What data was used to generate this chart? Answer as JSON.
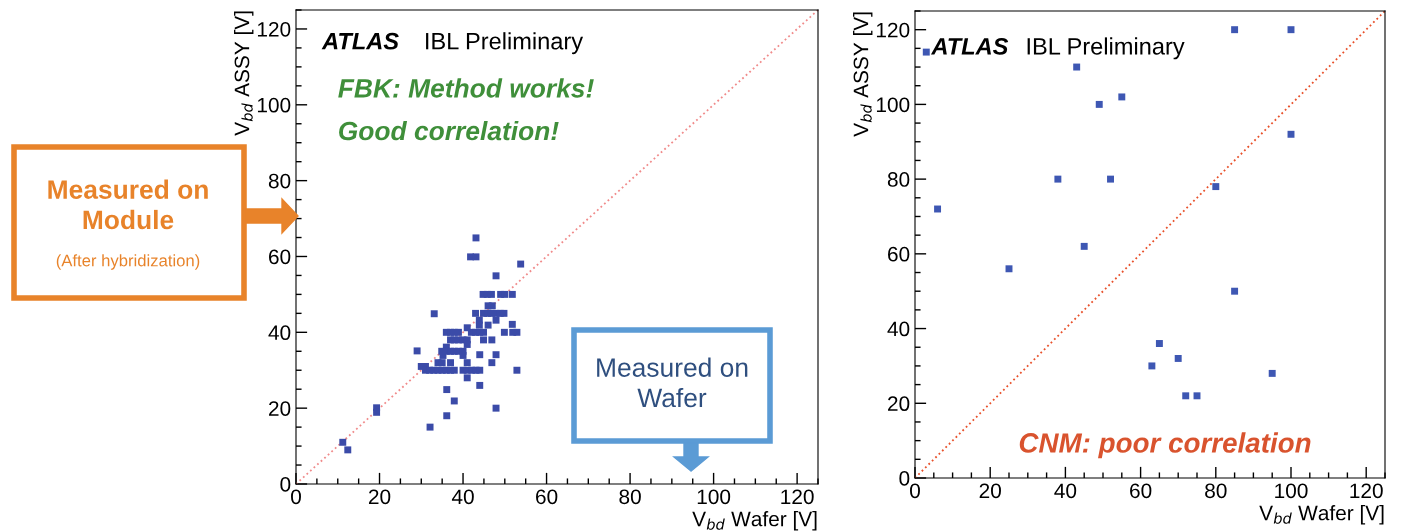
{
  "chart_data": [
    {
      "type": "scatter",
      "xlabel": "V$_{bd}$ Wafer [V]",
      "ylabel": "V$_{bd}$ ASSY [V]",
      "xlim": [
        0,
        125
      ],
      "ylim": [
        0,
        125
      ],
      "xticks": [
        0,
        20,
        40,
        60,
        80,
        100,
        120
      ],
      "yticks": [
        0,
        20,
        40,
        60,
        80,
        100,
        120
      ],
      "grid": false,
      "annotations": [
        "ATLAS",
        "IBL Preliminary",
        "FBK: Method works!",
        "Good correlation!",
        "Measured on\nModule",
        "(After hybridization)",
        "Measured on\nWafer"
      ],
      "series": [
        {
          "marker": "square",
          "color": "#3b4ba8",
          "x": [
            11.2,
            12.4,
            19.3,
            19.3,
            32.1,
            36.1,
            37.9,
            36.1,
            44.0,
            47.9,
            29.0,
            33.1,
            43.1,
            41.8,
            43.1,
            53.8,
            47.9,
            44.8,
            45.8,
            46.8,
            49.0,
            50.0,
            51.8,
            46.0,
            47.0,
            43.0,
            44.9,
            45.9,
            46.8,
            47.9,
            48.9,
            49.8,
            43.9,
            47.9,
            43.9,
            46.0,
            51.8,
            36.0,
            37.0,
            37.9,
            38.9,
            42.0,
            43.0,
            44.0,
            44.9,
            49.9,
            51.9,
            52.9,
            41.0,
            37.0,
            37.9,
            38.9,
            40.0,
            41.0,
            44.9,
            46.9,
            41.0,
            36.0,
            34.9,
            36.0,
            37.0,
            37.9,
            38.9,
            40.0,
            44.0,
            47.9,
            35.2,
            40.0,
            34.0,
            35.0,
            37.0,
            41.0,
            46.9,
            30.0,
            31.0,
            31.0,
            32.0,
            33.0,
            34.0,
            35.0,
            36.0,
            37.0,
            37.9,
            40.0,
            41.0,
            42.1,
            43.1,
            44.0,
            52.9,
            41.0
          ],
          "values": [
            11.0,
            9.0,
            20.1,
            18.9,
            15.0,
            18.0,
            21.9,
            24.9,
            26.0,
            20.0,
            35.1,
            44.9,
            64.9,
            59.9,
            59.9,
            58.0,
            54.9,
            50.0,
            50.0,
            50.0,
            50.0,
            50.0,
            50.0,
            47.0,
            47.0,
            45.0,
            45.0,
            45.0,
            45.0,
            45.0,
            45.0,
            45.0,
            43.2,
            43.2,
            41.9,
            41.9,
            42.1,
            40.0,
            40.0,
            40.0,
            40.0,
            40.0,
            40.0,
            40.0,
            40.0,
            40.0,
            40.0,
            40.0,
            41.2,
            38.0,
            38.0,
            38.0,
            38.0,
            38.0,
            38.0,
            38.0,
            36.8,
            36.1,
            35.0,
            35.0,
            35.0,
            35.0,
            35.0,
            35.0,
            34.1,
            34.1,
            33.9,
            33.9,
            32.0,
            32.0,
            32.0,
            32.0,
            32.0,
            31.0,
            31.0,
            30.0,
            30.0,
            30.0,
            30.0,
            30.0,
            30.0,
            30.0,
            30.0,
            30.0,
            30.0,
            30.0,
            30.0,
            30.0,
            30.0,
            28.0
          ]
        },
        {
          "type": "line",
          "color": "#f08a8a",
          "line_style": "dotted",
          "x": [
            0,
            125
          ],
          "values": [
            0,
            125
          ]
        }
      ]
    },
    {
      "type": "scatter",
      "xlabel": "V$_{bd}$ Wafer [V]",
      "ylabel": "V$_{bd}$ ASSY [V]",
      "xlim": [
        0,
        125
      ],
      "ylim": [
        0,
        125
      ],
      "xticks": [
        0,
        20,
        40,
        60,
        80,
        100,
        120
      ],
      "yticks": [
        0,
        20,
        40,
        60,
        80,
        100,
        120
      ],
      "grid": false,
      "annotations": [
        "ATLAS",
        "IBL Preliminary",
        "CNM: poor correlation"
      ],
      "series": [
        {
          "marker": "square",
          "color": "#3e57b3",
          "x": [
            3,
            6,
            25,
            38,
            43,
            45,
            49,
            52,
            55,
            80,
            85,
            100,
            100,
            85,
            65,
            63,
            70,
            72,
            75,
            95
          ],
          "values": [
            114,
            72,
            56,
            80,
            110,
            62,
            100,
            80,
            102,
            78,
            120,
            120,
            92,
            50,
            36,
            30,
            32,
            22,
            22,
            28
          ]
        },
        {
          "type": "line",
          "color": "#e8502a",
          "line_style": "dotted",
          "x": [
            0,
            125
          ],
          "values": [
            0,
            125
          ]
        }
      ]
    }
  ]
}
